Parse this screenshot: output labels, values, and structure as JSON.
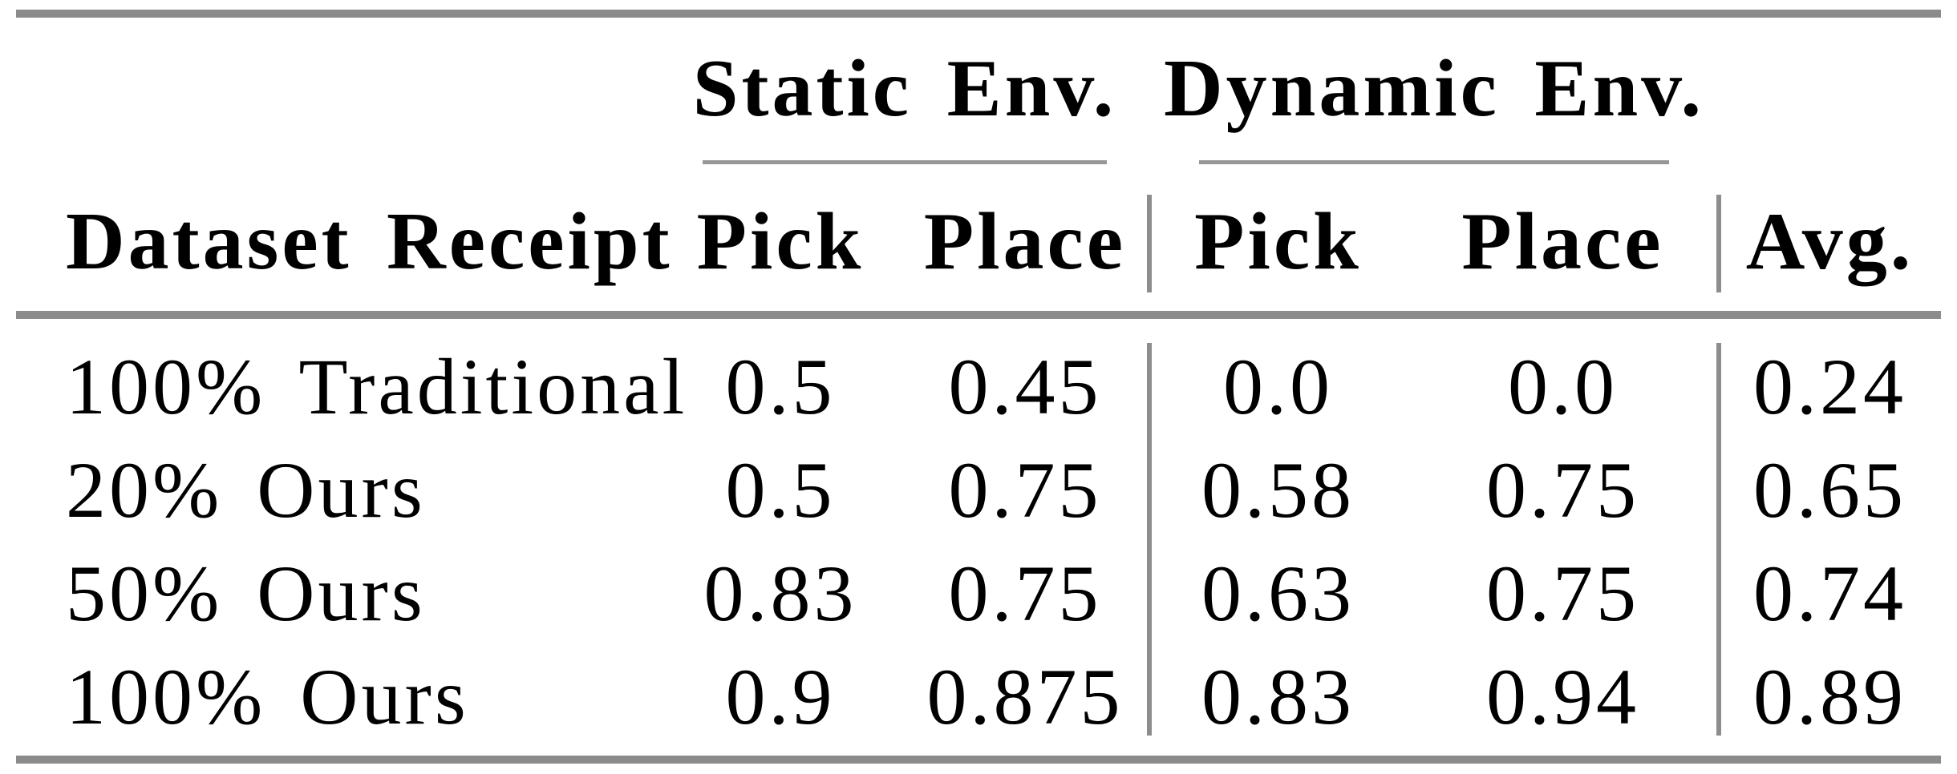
{
  "table": {
    "column_groups": [
      {
        "label": "Static Env."
      },
      {
        "label": "Dynamic Env."
      }
    ],
    "headers": {
      "row": "Dataset Receipt",
      "static_pick": "Pick",
      "static_place": "Place",
      "dynamic_pick": "Pick",
      "dynamic_place": "Place",
      "avg": "Avg."
    },
    "rows": [
      {
        "cells": [
          "100% Traditional",
          "0.5",
          "0.45",
          "0.0",
          "0.0",
          "0.24"
        ]
      },
      {
        "cells": [
          "20% Ours",
          "0.5",
          "0.75",
          "0.58",
          "0.75",
          "0.65"
        ]
      },
      {
        "cells": [
          "50% Ours",
          "0.83",
          "0.75",
          "0.63",
          "0.75",
          "0.74"
        ]
      },
      {
        "cells": [
          "100% Ours",
          "0.9",
          "0.875",
          "0.83",
          "0.94",
          "0.89"
        ]
      }
    ]
  },
  "colors": {
    "rule_thick": "#8b8b8b",
    "rule_thin": "#969696",
    "separator": "#8d8d8d",
    "text": "#000000",
    "background": "#ffffff"
  }
}
